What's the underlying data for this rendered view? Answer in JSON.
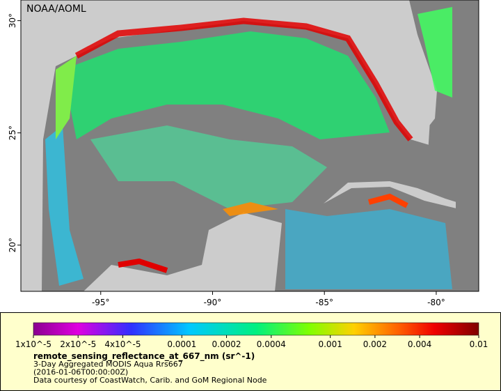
{
  "map": {
    "credit": "NOAA/AOML",
    "lonlim": [
      -98.57,
      -78.1
    ],
    "latlim": [
      17.94,
      30.92
    ],
    "lon_ticks": [
      {
        "value": -95,
        "label": "-95°"
      },
      {
        "value": -90,
        "label": "-90°"
      },
      {
        "value": -85,
        "label": "-85°"
      },
      {
        "value": -80,
        "label": "-80°"
      }
    ],
    "lat_ticks": [
      {
        "value": 20,
        "label": "20°"
      },
      {
        "value": 25,
        "label": "25°"
      },
      {
        "value": 30,
        "label": "30°"
      }
    ],
    "colorbar": {
      "log": true,
      "lim": [
        1e-05,
        0.01
      ],
      "ticks": [
        {
          "value": 1e-05,
          "label": "1x10^-5"
        },
        {
          "value": 2e-05,
          "label": "2x10^-5"
        },
        {
          "value": 4e-05,
          "label": "4x10^-5"
        },
        0.0001,
        0.0002,
        0.0004,
        0.001,
        0.002,
        0.004,
        0.01
      ],
      "title": "remote_sensing_reflectance_at_667_nm (sr^-1)",
      "lines": [
        "3-Day Aggregated MODIS Aqua Rrs667",
        "(2016-01-06T00:00:00Z)",
        "Data courtesy of CoastWatch, Carib. and GoM Regional Node"
      ]
    }
  }
}
